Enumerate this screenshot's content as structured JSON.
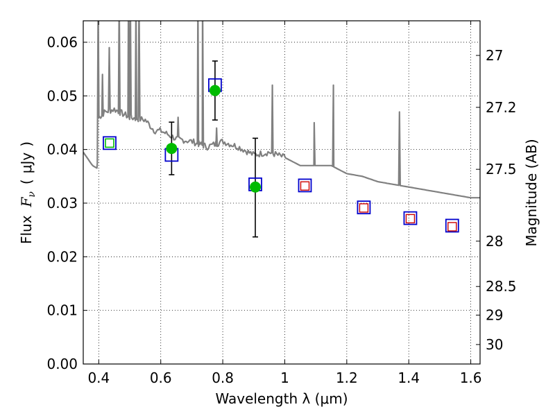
{
  "chart_data": {
    "type": "scatter",
    "xlabel": "Wavelength  λ (μm)",
    "ylabel": "Flux  F_ν  ( μJy )",
    "ylabel_parts": [
      "Flux",
      "F",
      "ν",
      "(",
      "μJy",
      ")"
    ],
    "ylabel_right": "Magnitude (AB)",
    "xlim": [
      0.35,
      1.63
    ],
    "ylim": [
      0.0,
      0.064
    ],
    "grid": true,
    "x_ticks": [
      0.4,
      0.6,
      0.8,
      1.0,
      1.2,
      1.4,
      1.6
    ],
    "x_tick_labels": [
      "0.4",
      "0.6",
      "0.8",
      "1",
      "1.2",
      "1.4",
      "1.6"
    ],
    "y_ticks": [
      0.0,
      0.01,
      0.02,
      0.03,
      0.04,
      0.05,
      0.06
    ],
    "y_tick_labels": [
      "0.00",
      "0.01",
      "0.02",
      "0.03",
      "0.04",
      "0.05",
      "0.06"
    ],
    "mag_ticks": [
      27,
      27.2,
      27.5,
      28,
      28.5,
      29,
      30
    ],
    "mag_tick_labels": [
      "27",
      "27.2",
      "27.5",
      "28",
      "28.5",
      "29",
      "30"
    ],
    "series": [
      {
        "name": "Model SED spectrum",
        "style": "line",
        "color": "#808080",
        "continuum": [
          [
            0.35,
            0.0395
          ],
          [
            0.38,
            0.037
          ],
          [
            0.395,
            0.0365
          ],
          [
            0.4,
            0.046
          ],
          [
            0.42,
            0.047
          ],
          [
            0.45,
            0.0475
          ],
          [
            0.5,
            0.046
          ],
          [
            0.55,
            0.0455
          ],
          [
            0.58,
            0.0435
          ],
          [
            0.6,
            0.0435
          ],
          [
            0.65,
            0.042
          ],
          [
            0.7,
            0.0415
          ],
          [
            0.75,
            0.0405
          ],
          [
            0.8,
            0.0415
          ],
          [
            0.85,
            0.0405
          ],
          [
            0.9,
            0.039
          ],
          [
            0.95,
            0.0395
          ],
          [
            1.0,
            0.0385
          ],
          [
            1.05,
            0.037
          ],
          [
            1.1,
            0.037
          ],
          [
            1.15,
            0.037
          ],
          [
            1.2,
            0.0355
          ],
          [
            1.25,
            0.035
          ],
          [
            1.3,
            0.034
          ],
          [
            1.35,
            0.0335
          ],
          [
            1.4,
            0.033
          ],
          [
            1.45,
            0.0325
          ],
          [
            1.5,
            0.032
          ],
          [
            1.55,
            0.0315
          ],
          [
            1.6,
            0.031
          ],
          [
            1.63,
            0.031
          ]
        ],
        "emission_lines": [
          {
            "x": 0.398,
            "peak": 0.068
          },
          {
            "x": 0.412,
            "peak": 0.054
          },
          {
            "x": 0.434,
            "peak": 0.059
          },
          {
            "x": 0.466,
            "peak": 0.068
          },
          {
            "x": 0.496,
            "peak": 0.068
          },
          {
            "x": 0.502,
            "peak": 0.068
          },
          {
            "x": 0.52,
            "peak": 0.068
          },
          {
            "x": 0.53,
            "peak": 0.068
          },
          {
            "x": 0.656,
            "peak": 0.046
          },
          {
            "x": 0.72,
            "peak": 0.068
          },
          {
            "x": 0.735,
            "peak": 0.068
          },
          {
            "x": 0.78,
            "peak": 0.044
          },
          {
            "x": 0.96,
            "peak": 0.052
          },
          {
            "x": 1.095,
            "peak": 0.045
          },
          {
            "x": 1.157,
            "peak": 0.052
          },
          {
            "x": 1.37,
            "peak": 0.047
          }
        ]
      },
      {
        "name": "Model photometry",
        "style": "open-square",
        "color": "#0000cc",
        "x": [
          0.435,
          0.635,
          0.775,
          0.905,
          1.065,
          1.255,
          1.405,
          1.54
        ],
        "y": [
          0.0412,
          0.039,
          0.052,
          0.0335,
          0.0333,
          0.0292,
          0.0272,
          0.0258
        ]
      },
      {
        "name": "Upper-limit flux",
        "style": "small-open-square",
        "color": "#cc0000",
        "x": [
          1.065,
          1.255,
          1.405,
          1.54
        ],
        "y": [
          0.0332,
          0.0291,
          0.0271,
          0.0256
        ]
      },
      {
        "name": "Observed photometry",
        "style": "filled-circle",
        "color": "#00bb00",
        "x": [
          0.635,
          0.775,
          0.905
        ],
        "y": [
          0.0402,
          0.051,
          0.033
        ],
        "yerr_low": [
          0.0353,
          0.0455,
          0.0237
        ],
        "yerr_high": [
          0.0451,
          0.0565,
          0.0421
        ]
      },
      {
        "name": "Observed photometry (B)",
        "style": "small-filled-square",
        "color": "#00bb00",
        "x": [
          0.435
        ],
        "y": [
          0.0412
        ]
      }
    ]
  }
}
